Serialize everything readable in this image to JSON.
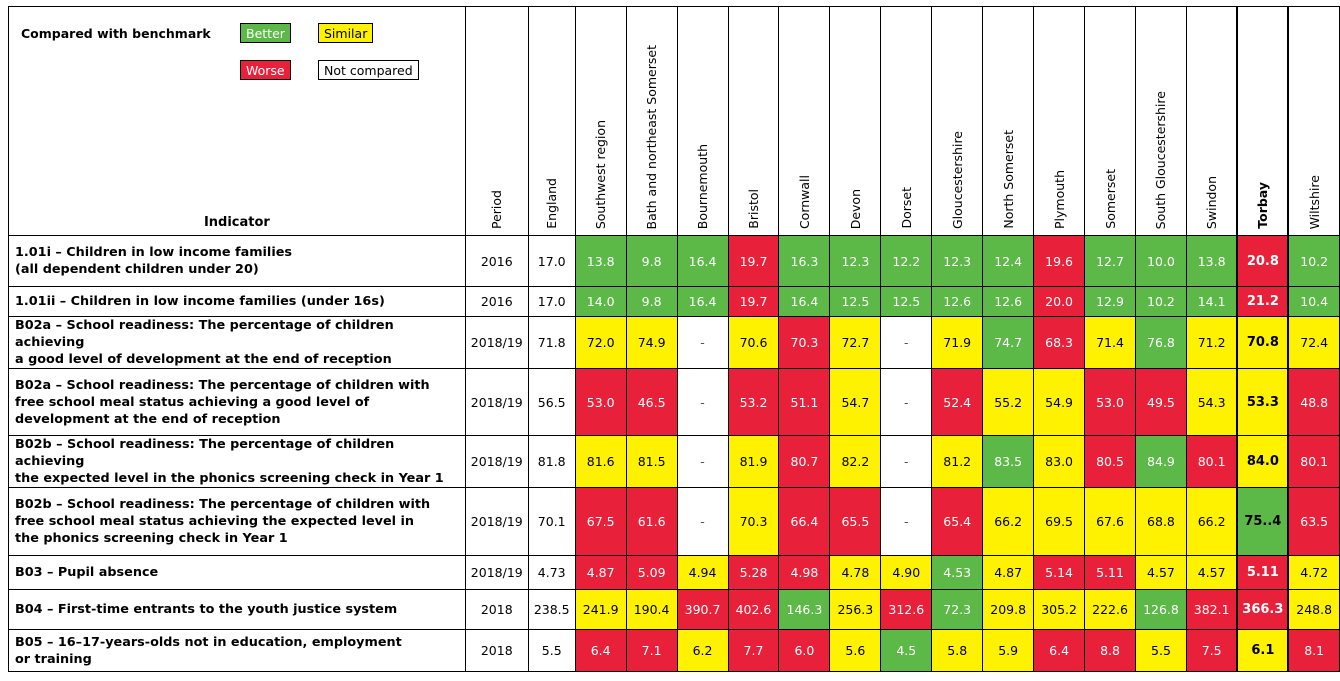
{
  "legend": {
    "title": "Compared with benchmark",
    "better": "Better",
    "similar": "Similar",
    "worse": "Worse",
    "not_compared": "Not compared"
  },
  "indicator_header": "Indicator",
  "columns": [
    "Period",
    "England",
    "Southwest region",
    "Bath and northeast Somerset",
    "Bournemouth",
    "Bristol",
    "Cornwall",
    "Devon",
    "Dorset",
    "Gloucestershire",
    "North Somerset",
    "Plymouth",
    "Somerset",
    "South Gloucestershire",
    "Swindon",
    "Torbay",
    "Wiltshire"
  ],
  "colors": {
    "better": "#5cb847",
    "similar": "#fff200",
    "worse": "#e8203a",
    "not_compared": "#ffffff"
  },
  "rows": [
    {
      "indicator": [
        "1.01i – Children in low income families",
        "(all dependent children under 20)"
      ],
      "period": "2016",
      "england": "17.0",
      "cells": [
        [
          "13.8",
          "b"
        ],
        [
          "9.8",
          "b"
        ],
        [
          "16.4",
          "b"
        ],
        [
          "19.7",
          "w"
        ],
        [
          "16.3",
          "b"
        ],
        [
          "12.3",
          "b"
        ],
        [
          "12.2",
          "b"
        ],
        [
          "12.3",
          "b"
        ],
        [
          "12.4",
          "b"
        ],
        [
          "19.6",
          "w"
        ],
        [
          "12.7",
          "b"
        ],
        [
          "10.0",
          "b"
        ],
        [
          "13.8",
          "b"
        ],
        [
          "20.8",
          "w"
        ],
        [
          "10.2",
          "b"
        ]
      ]
    },
    {
      "indicator": [
        "1.01ii – Children in low income families (under 16s)"
      ],
      "period": "2016",
      "england": "17.0",
      "cells": [
        [
          "14.0",
          "b"
        ],
        [
          "9.8",
          "b"
        ],
        [
          "16.4",
          "b"
        ],
        [
          "19.7",
          "w"
        ],
        [
          "16.4",
          "b"
        ],
        [
          "12.5",
          "b"
        ],
        [
          "12.5",
          "b"
        ],
        [
          "12.6",
          "b"
        ],
        [
          "12.6",
          "b"
        ],
        [
          "20.0",
          "w"
        ],
        [
          "12.9",
          "b"
        ],
        [
          "10.2",
          "b"
        ],
        [
          "14.1",
          "b"
        ],
        [
          "21.2",
          "w"
        ],
        [
          "10.4",
          "b"
        ]
      ]
    },
    {
      "indicator": [
        "B02a – School readiness: The percentage of children achieving",
        "a good level of development at the end of reception"
      ],
      "period": "2018/19",
      "england": "71.8",
      "cells": [
        [
          "72.0",
          "s"
        ],
        [
          "74.9",
          "s"
        ],
        [
          "-",
          "n"
        ],
        [
          "70.6",
          "s"
        ],
        [
          "70.3",
          "w"
        ],
        [
          "72.7",
          "s"
        ],
        [
          "-",
          "n"
        ],
        [
          "71.9",
          "s"
        ],
        [
          "74.7",
          "b"
        ],
        [
          "68.3",
          "w"
        ],
        [
          "71.4",
          "s"
        ],
        [
          "76.8",
          "b"
        ],
        [
          "71.2",
          "s"
        ],
        [
          "70.8",
          "s"
        ],
        [
          "72.4",
          "s"
        ]
      ]
    },
    {
      "indicator": [
        "B02a – School readiness: The percentage of children with",
        "free school meal status achieving a good level of",
        "development at the end of reception"
      ],
      "period": "2018/19",
      "england": "56.5",
      "cells": [
        [
          "53.0",
          "w"
        ],
        [
          "46.5",
          "w"
        ],
        [
          "-",
          "n"
        ],
        [
          "53.2",
          "w"
        ],
        [
          "51.1",
          "w"
        ],
        [
          "54.7",
          "s"
        ],
        [
          "-",
          "n"
        ],
        [
          "52.4",
          "w"
        ],
        [
          "55.2",
          "s"
        ],
        [
          "54.9",
          "s"
        ],
        [
          "53.0",
          "w"
        ],
        [
          "49.5",
          "w"
        ],
        [
          "54.3",
          "s"
        ],
        [
          "53.3",
          "s"
        ],
        [
          "48.8",
          "w"
        ]
      ]
    },
    {
      "indicator": [
        "B02b – School readiness: The percentage of children achieving",
        "the expected level in the phonics screening check in Year 1"
      ],
      "period": "2018/19",
      "england": "81.8",
      "cells": [
        [
          "81.6",
          "s"
        ],
        [
          "81.5",
          "s"
        ],
        [
          "-",
          "n"
        ],
        [
          "81.9",
          "s"
        ],
        [
          "80.7",
          "w"
        ],
        [
          "82.2",
          "s"
        ],
        [
          "-",
          "n"
        ],
        [
          "81.2",
          "s"
        ],
        [
          "83.5",
          "b"
        ],
        [
          "83.0",
          "s"
        ],
        [
          "80.5",
          "w"
        ],
        [
          "84.9",
          "b"
        ],
        [
          "80.1",
          "w"
        ],
        [
          "84.0",
          "s"
        ],
        [
          "80.1",
          "w"
        ]
      ]
    },
    {
      "indicator": [
        "B02b – School readiness: The percentage of children with",
        "free school meal status achieving the expected level in",
        "the phonics screening check in Year 1"
      ],
      "period": "2018/19",
      "england": "70.1",
      "cells": [
        [
          "67.5",
          "w"
        ],
        [
          "61.6",
          "w"
        ],
        [
          "-",
          "n"
        ],
        [
          "70.3",
          "s"
        ],
        [
          "66.4",
          "w"
        ],
        [
          "65.5",
          "w"
        ],
        [
          "-",
          "n"
        ],
        [
          "65.4",
          "w"
        ],
        [
          "66.2",
          "s"
        ],
        [
          "69.5",
          "s"
        ],
        [
          "67.6",
          "s"
        ],
        [
          "68.8",
          "s"
        ],
        [
          "66.2",
          "s"
        ],
        [
          "75..4",
          "b"
        ],
        [
          "63.5",
          "w"
        ]
      ]
    },
    {
      "indicator": [
        "B03 – Pupil absence"
      ],
      "period": "2018/19",
      "england": "4.73",
      "cells": [
        [
          "4.87",
          "w"
        ],
        [
          "5.09",
          "w"
        ],
        [
          "4.94",
          "s"
        ],
        [
          "5.28",
          "w"
        ],
        [
          "4.98",
          "w"
        ],
        [
          "4.78",
          "s"
        ],
        [
          "4.90",
          "s"
        ],
        [
          "4.53",
          "b"
        ],
        [
          "4.87",
          "s"
        ],
        [
          "5.14",
          "w"
        ],
        [
          "5.11",
          "w"
        ],
        [
          "4.57",
          "s"
        ],
        [
          "4.57",
          "s"
        ],
        [
          "5.11",
          "w"
        ],
        [
          "4.72",
          "s"
        ]
      ]
    },
    {
      "indicator": [
        "B04 – First-time entrants to the youth justice system"
      ],
      "period": "2018",
      "england": "238.5",
      "cells": [
        [
          "241.9",
          "s"
        ],
        [
          "190.4",
          "s"
        ],
        [
          "390.7",
          "w"
        ],
        [
          "402.6",
          "w"
        ],
        [
          "146.3",
          "b"
        ],
        [
          "256.3",
          "s"
        ],
        [
          "312.6",
          "w"
        ],
        [
          "72.3",
          "b"
        ],
        [
          "209.8",
          "s"
        ],
        [
          "305.2",
          "s"
        ],
        [
          "222.6",
          "s"
        ],
        [
          "126.8",
          "b"
        ],
        [
          "382.1",
          "w"
        ],
        [
          "366.3",
          "w"
        ],
        [
          "248.8",
          "s"
        ]
      ]
    },
    {
      "indicator": [
        "B05 – 16–17-years-olds not in education, employment",
        "or training"
      ],
      "period": "2018",
      "england": "5.5",
      "cells": [
        [
          "6.4",
          "w"
        ],
        [
          "7.1",
          "w"
        ],
        [
          "6.2",
          "s"
        ],
        [
          "7.7",
          "w"
        ],
        [
          "6.0",
          "w"
        ],
        [
          "5.6",
          "s"
        ],
        [
          "4.5",
          "b"
        ],
        [
          "5.8",
          "s"
        ],
        [
          "5.9",
          "s"
        ],
        [
          "6.4",
          "w"
        ],
        [
          "8.8",
          "w"
        ],
        [
          "5.5",
          "s"
        ],
        [
          "7.5",
          "w"
        ],
        [
          "6.1",
          "s"
        ],
        [
          "8.1",
          "w"
        ]
      ]
    }
  ]
}
